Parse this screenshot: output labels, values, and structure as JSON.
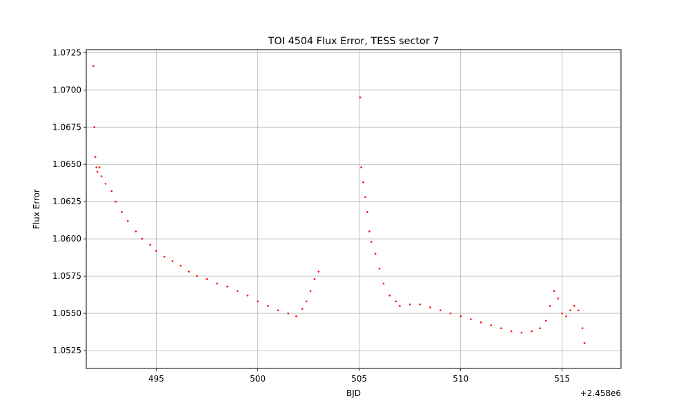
{
  "chart_data": {
    "type": "scatter",
    "title": "TOI 4504 Flux Error, TESS sector 7",
    "xlabel": "BJD",
    "ylabel": "Flux Error",
    "x_offset_label": "+2.458e6",
    "xlim": [
      491.55,
      517.9
    ],
    "ylim": [
      1.0513,
      1.0727
    ],
    "xticks": [
      495,
      500,
      505,
      510,
      515
    ],
    "xtick_labels": [
      "495",
      "500",
      "505",
      "510",
      "515"
    ],
    "yticks": [
      1.0525,
      1.055,
      1.0575,
      1.06,
      1.0625,
      1.065,
      1.0675,
      1.07,
      1.0725
    ],
    "ytick_labels": [
      "1.0525",
      "1.0550",
      "1.0575",
      "1.0600",
      "1.0625",
      "1.0650",
      "1.0675",
      "1.0700",
      "1.0725"
    ],
    "grid": true,
    "point_color": "#ff0000",
    "series": [
      {
        "x": [
          491.9,
          491.95,
          492.0,
          492.05,
          492.1,
          492.2,
          492.3,
          492.5,
          492.8,
          493.0,
          493.3,
          493.6,
          494.0,
          494.3,
          494.7,
          495.0,
          495.4,
          495.8,
          496.2,
          496.6,
          497.0,
          497.5,
          498.0,
          498.5,
          499.0,
          499.5,
          500.0,
          500.5,
          501.0,
          501.5,
          501.9,
          502.2,
          502.4,
          502.6,
          502.8,
          503.0
        ],
        "y": [
          1.0716,
          1.0675,
          1.0655,
          1.0648,
          1.0645,
          1.0648,
          1.0642,
          1.0637,
          1.0632,
          1.0625,
          1.0618,
          1.0612,
          1.0605,
          1.06,
          1.0596,
          1.0592,
          1.0588,
          1.0585,
          1.0582,
          1.0578,
          1.0575,
          1.0573,
          1.057,
          1.0568,
          1.0565,
          1.0562,
          1.0558,
          1.0555,
          1.0552,
          1.055,
          1.0548,
          1.0553,
          1.0558,
          1.0565,
          1.0573,
          1.0578
        ]
      },
      {
        "x": [
          505.05,
          505.1,
          505.2,
          505.3,
          505.4,
          505.5,
          505.6,
          505.8,
          506.0,
          506.2,
          506.5,
          506.8,
          507.0,
          507.5,
          508.0,
          508.5,
          509.0,
          509.5,
          510.0,
          510.5,
          511.0,
          511.5,
          512.0,
          512.5,
          513.0,
          513.5,
          513.9,
          514.2,
          514.4,
          514.6,
          514.8,
          515.0,
          515.2,
          515.4,
          515.6,
          515.8,
          516.0,
          516.1
        ],
        "y": [
          1.0695,
          1.0648,
          1.0638,
          1.0628,
          1.0618,
          1.0605,
          1.0598,
          1.059,
          1.058,
          1.057,
          1.0562,
          1.0558,
          1.0555,
          1.0556,
          1.0556,
          1.0554,
          1.0552,
          1.055,
          1.0548,
          1.0546,
          1.0544,
          1.0542,
          1.054,
          1.0538,
          1.0537,
          1.0538,
          1.054,
          1.0545,
          1.0555,
          1.0565,
          1.056,
          1.055,
          1.0548,
          1.0552,
          1.0555,
          1.0552,
          1.054,
          1.053
        ]
      }
    ]
  }
}
